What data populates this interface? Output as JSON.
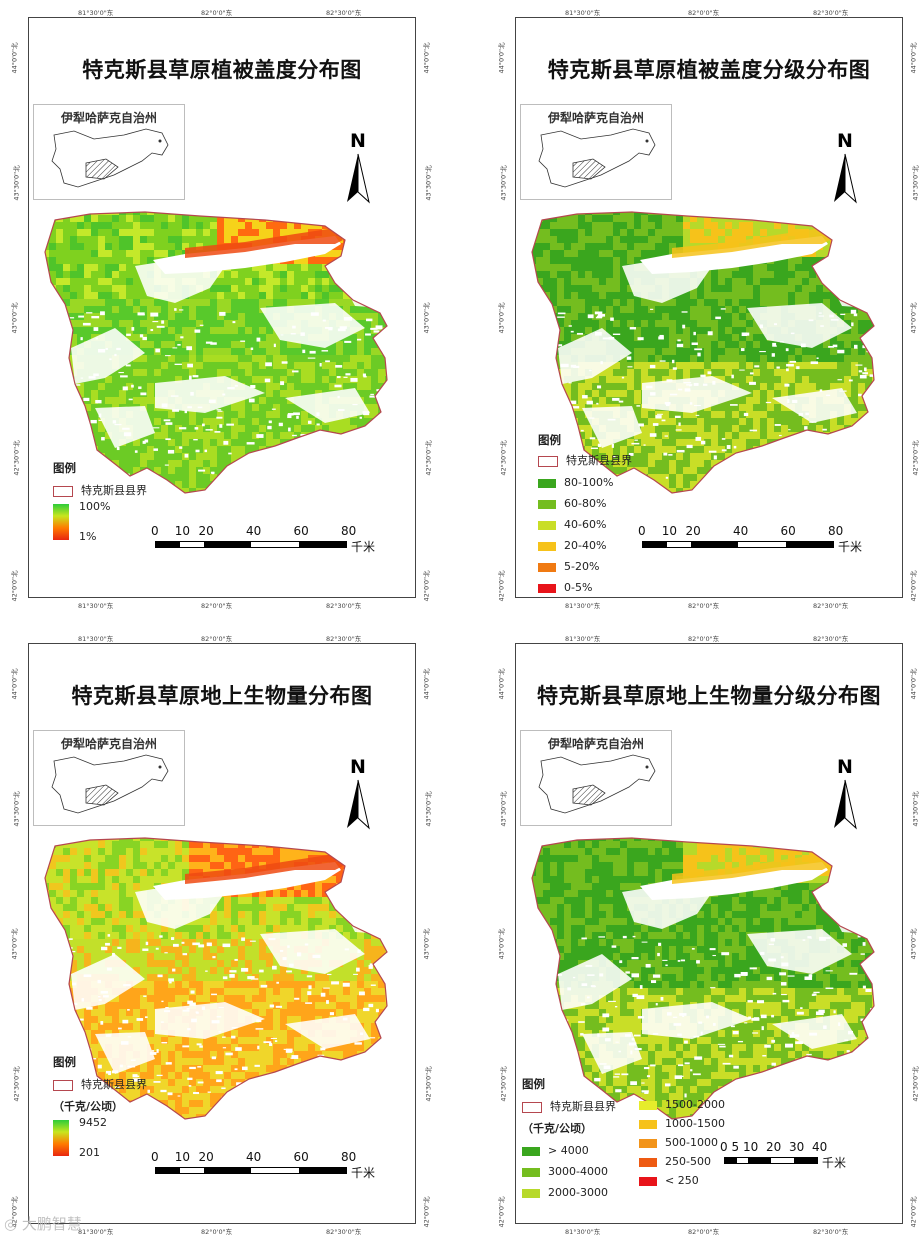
{
  "panels": [
    {
      "title": "特克斯县草原植被盖度分布图",
      "inset_label": "伊犁哈萨克自治州",
      "north": "N",
      "legend_title": "图例",
      "boundary_label": "特克斯县县界",
      "legend_type": "gradient",
      "unit": "",
      "gradient_max": "100%",
      "gradient_min": "1%",
      "classes": [],
      "scale_labels": [
        "0",
        "10",
        "20",
        "40",
        "60",
        "80"
      ],
      "scale_unit": "千米",
      "palette": "coverage"
    },
    {
      "title": "特克斯县草原植被盖度分级分布图",
      "inset_label": "伊犁哈萨克自治州",
      "north": "N",
      "legend_title": "图例",
      "boundary_label": "特克斯县县界",
      "legend_type": "classes",
      "unit": "",
      "gradient_max": "",
      "gradient_min": "",
      "classes": [
        {
          "label": "80-100%",
          "color": "#3aa61e"
        },
        {
          "label": "60-80%",
          "color": "#74bd1f"
        },
        {
          "label": "40-60%",
          "color": "#c9de27"
        },
        {
          "label": "20-40%",
          "color": "#f6c21a"
        },
        {
          "label": "5-20%",
          "color": "#f07a12"
        },
        {
          "label": "0-5%",
          "color": "#e8141a"
        }
      ],
      "scale_labels": [
        "0",
        "10",
        "20",
        "40",
        "60",
        "80"
      ],
      "scale_unit": "千米",
      "palette": "classes"
    },
    {
      "title": "特克斯县草原地上生物量分布图",
      "inset_label": "伊犁哈萨克自治州",
      "north": "N",
      "legend_title": "图例",
      "boundary_label": "特克斯县县界",
      "legend_type": "gradient",
      "unit": "（千克/公顷）",
      "gradient_max": "9452",
      "gradient_min": "201",
      "classes": [],
      "scale_labels": [
        "0",
        "10",
        "20",
        "40",
        "60",
        "80"
      ],
      "scale_unit": "千米",
      "palette": "biomass"
    },
    {
      "title": "特克斯县草原地上生物量分级分布图",
      "inset_label": "伊犁哈萨克自治州",
      "north": "N",
      "legend_title": "图例",
      "boundary_label": "特克斯县县界",
      "legend_type": "classes-2col",
      "unit": "（千克/公顷）",
      "gradient_max": "",
      "gradient_min": "",
      "classes": [
        {
          "label": "> 4000",
          "color": "#3aa61e"
        },
        {
          "label": "3000-4000",
          "color": "#74bd1f"
        },
        {
          "label": "2000-3000",
          "color": "#b7d92a"
        },
        {
          "label": "1500-2000",
          "color": "#e6ec2b"
        },
        {
          "label": "1000-1500",
          "color": "#f6c21a"
        },
        {
          "label": "500-1000",
          "color": "#f2941a"
        },
        {
          "label": "250-500",
          "color": "#ee5a12"
        },
        {
          "label": "< 250",
          "color": "#e8141a"
        }
      ],
      "scale_labels": [
        "0",
        "5",
        "10",
        "20",
        "30",
        "40"
      ],
      "scale_unit": "千米",
      "palette": "classes"
    }
  ],
  "ticks": {
    "lon": [
      "81°30'0\"东",
      "82°0'0\"东",
      "82°30'0\"东"
    ],
    "lat": [
      "44°0'0\"北",
      "43°30'0\"北",
      "43°0'0\"北",
      "42°30'0\"北",
      "42°0'0\"北"
    ]
  },
  "watermark": "大鹏智慧"
}
